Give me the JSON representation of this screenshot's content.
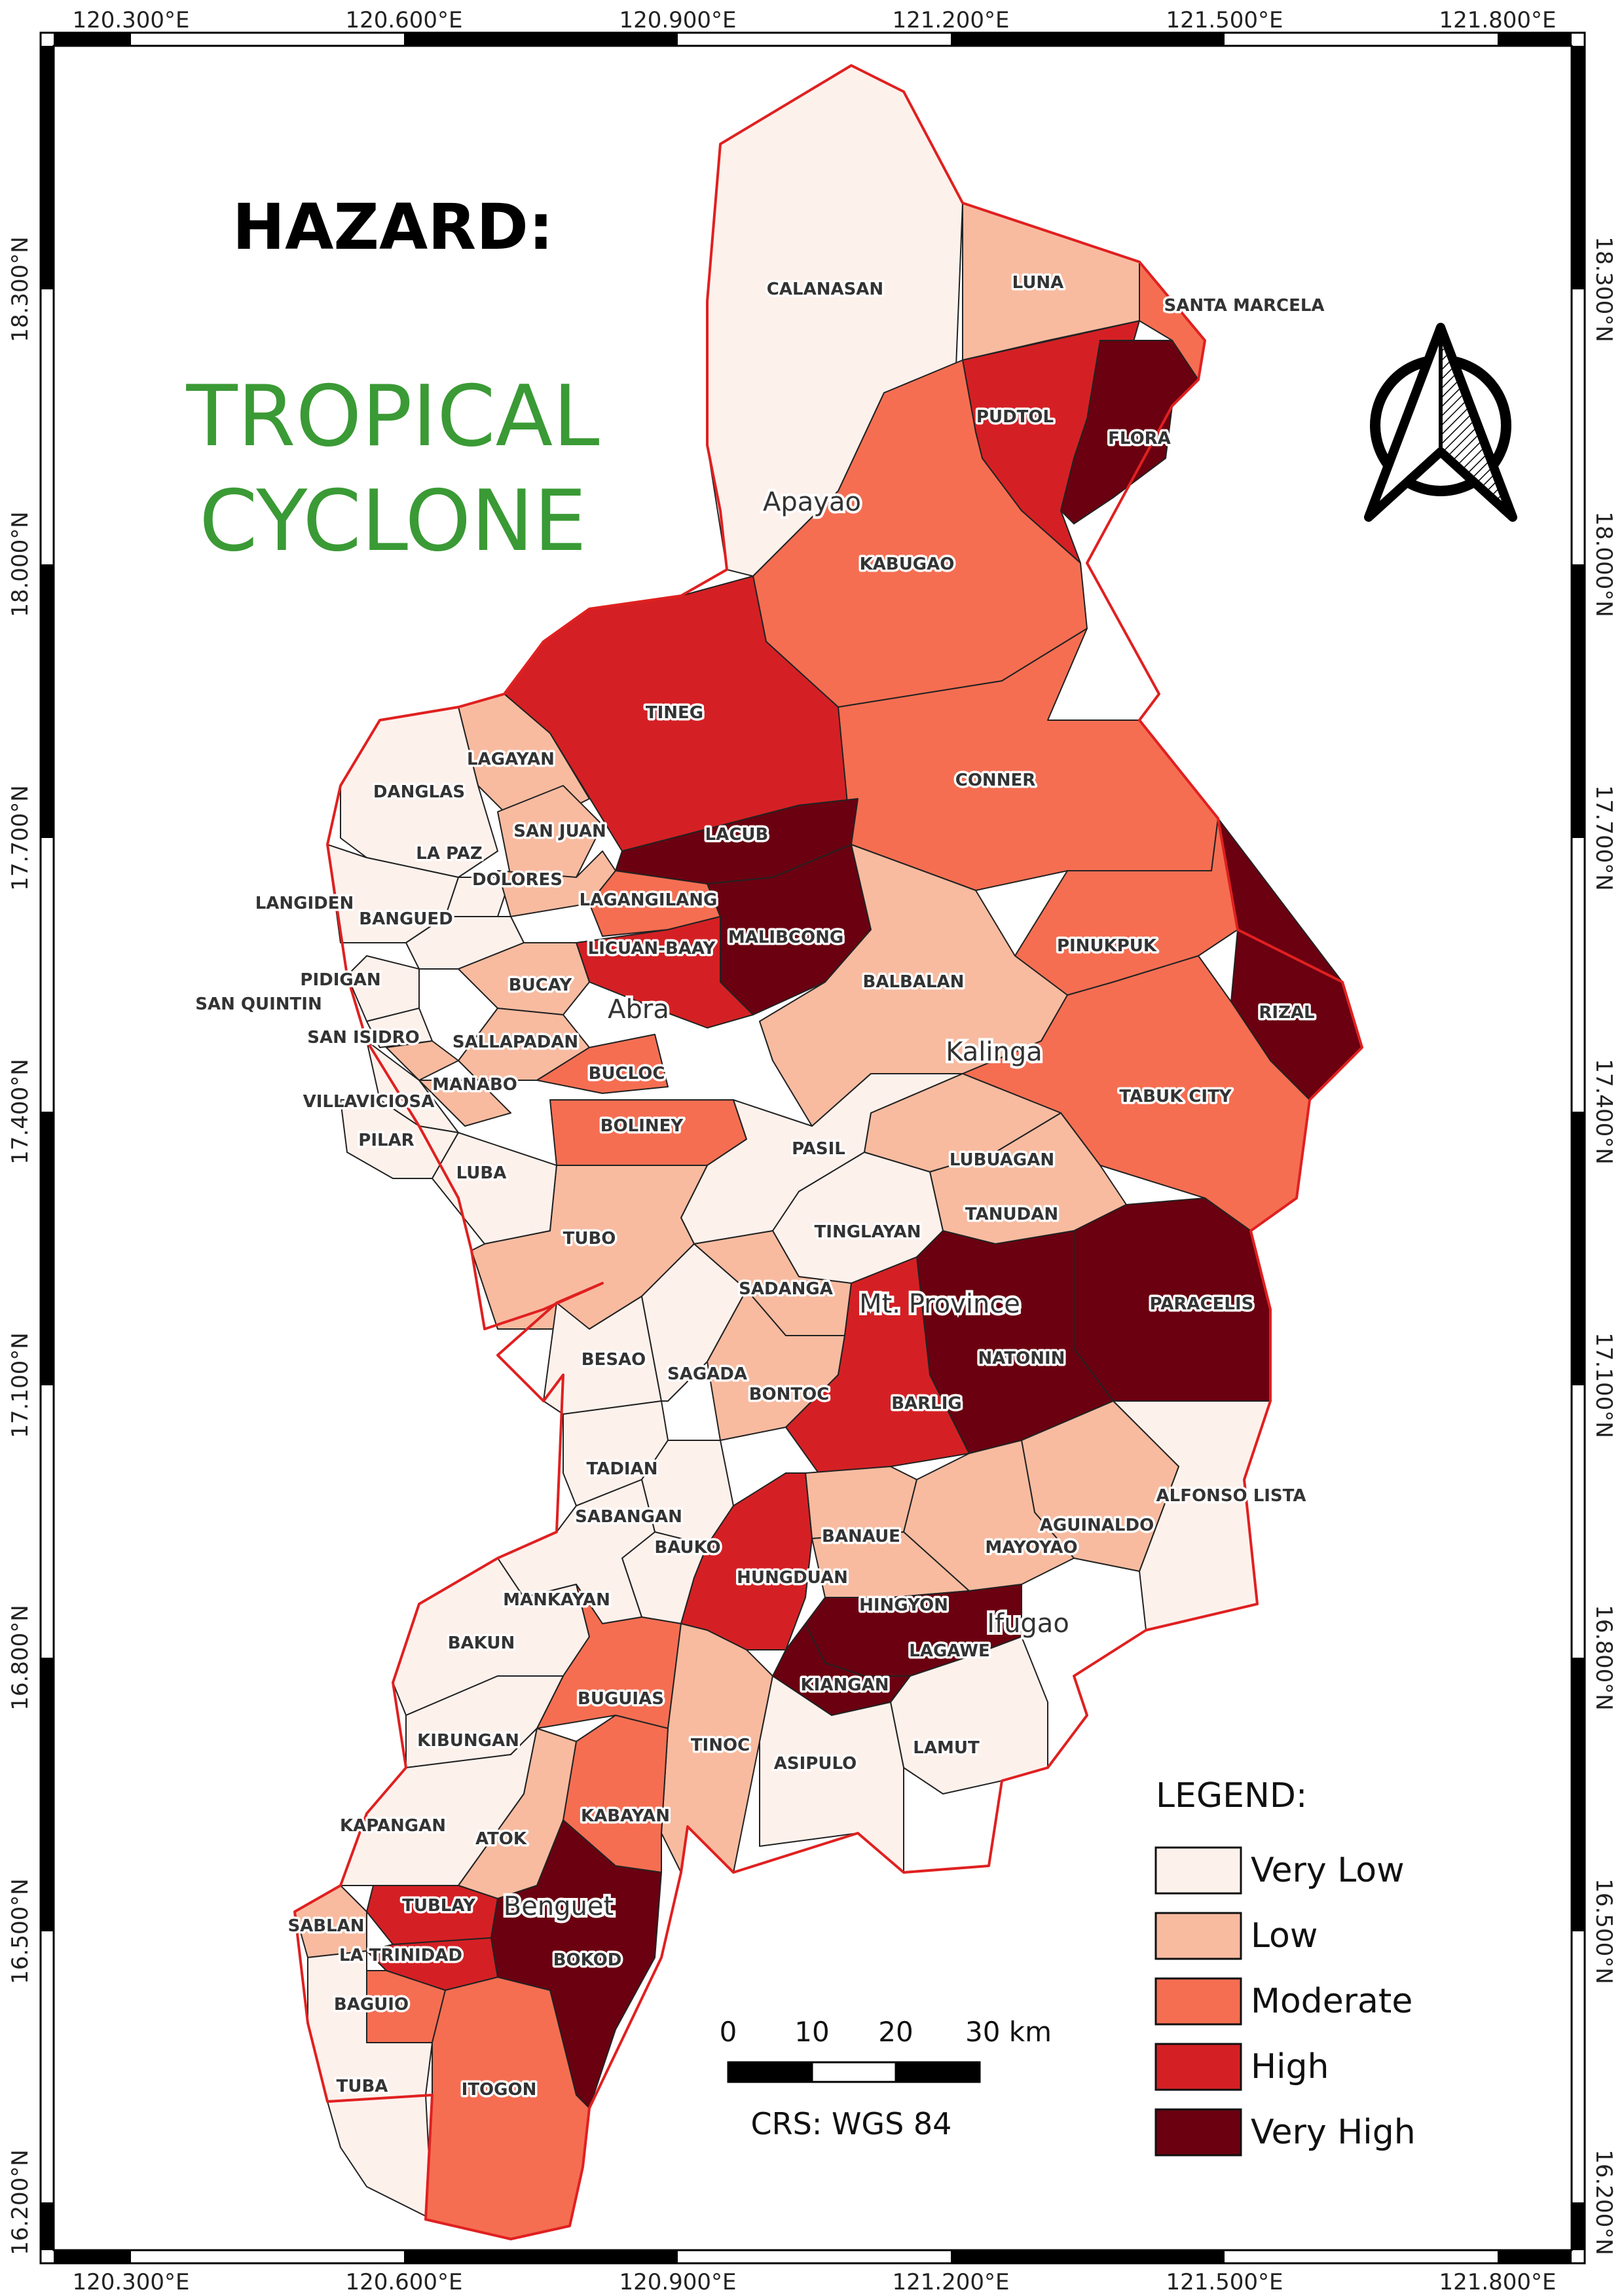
{
  "title": {
    "line1": "HAZARD:",
    "line2": "TROPICAL",
    "line3": "CYCLONE"
  },
  "coords": {
    "lon": [
      "120.300°E",
      "120.600°E",
      "120.900°E",
      "121.200°E",
      "121.500°E",
      "121.800°E"
    ],
    "lat": [
      "18.300°N",
      "18.000°N",
      "17.700°N",
      "17.400°N",
      "17.100°N",
      "16.800°N",
      "16.500°N",
      "16.200°N"
    ]
  },
  "colors": {
    "very_low": "#fdf1ec",
    "low": "#f8bba0",
    "moderate": "#f56e52",
    "high": "#d42024",
    "very_high": "#6b0010",
    "boundary": "#e02020"
  },
  "provinces": [
    "Apayao",
    "Abra",
    "Kalinga",
    "Mt. Province",
    "Ifugao",
    "Benguet"
  ],
  "municipalities": [
    "CALANASAN",
    "LUNA",
    "SANTA MARCELA",
    "PUDTOL",
    "FLORA",
    "KABUGAO",
    "TINEG",
    "CONNER",
    "LAGAYAN",
    "DANGLAS",
    "SAN JUAN",
    "LACUB",
    "LA PAZ",
    "DOLORES",
    "LANGIDEN",
    "LAGANGILANG",
    "BANGUED",
    "MALIBCONG",
    "LICUAN-BAAY",
    "PINUKPUK",
    "PIDIGAN",
    "BALBALAN",
    "RIZAL",
    "BUCAY",
    "SAN QUINTIN",
    "SAN ISIDRO",
    "SALLAPADAN",
    "BUCLOC",
    "MANABO",
    "TABUK CITY",
    "VILLAVICIOSA",
    "BOLINEY",
    "PILAR",
    "PASIL",
    "LUBUAGAN",
    "LUBA",
    "TANUDAN",
    "TUBO",
    "TINGLAYAN",
    "SADANGA",
    "PARACELIS",
    "NATONIN",
    "BESAO",
    "SAGADA",
    "BONTOC",
    "BARLIG",
    "TADIAN",
    "ALFONSO LISTA",
    "SABANGAN",
    "BANAUE",
    "AGUINALDO",
    "BAUKO",
    "MANKAYAN",
    "MAYOYAO",
    "HUNGDUAN",
    "HINGYON",
    "BAKUN",
    "LAGAWE",
    "BUGUIAS",
    "KIANGAN",
    "KIBUNGAN",
    "TINOC",
    "LAMUT",
    "ASIPULO",
    "KABAYAN",
    "KAPANGAN",
    "ATOK",
    "TUBLAY",
    "SABLAN",
    "LA TRINIDAD",
    "BOKOD",
    "BAGUIO",
    "TUBA",
    "ITOGON"
  ],
  "legend": {
    "title": "LEGEND:",
    "items": [
      {
        "label": "Very Low",
        "color": "#fdf1ec"
      },
      {
        "label": "Low",
        "color": "#f8bba0"
      },
      {
        "label": "Moderate",
        "color": "#f56e52"
      },
      {
        "label": "High",
        "color": "#d42024"
      },
      {
        "label": "Very High",
        "color": "#6b0010"
      }
    ]
  },
  "scale_bar": {
    "ticks": [
      "0",
      "10",
      "20",
      "30 km"
    ],
    "crs": "CRS: WGS 84"
  }
}
